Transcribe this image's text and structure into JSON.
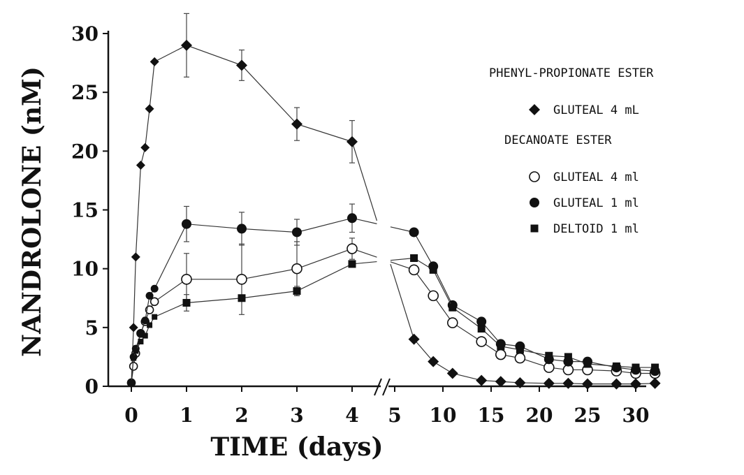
{
  "chart_data": {
    "type": "line",
    "xlabel": "TIME (days)",
    "ylabel": "NANDROLONE (nM)",
    "ylim": [
      0,
      30
    ],
    "y_ticks": [
      "0",
      "5",
      "10",
      "15",
      "20",
      "25",
      "30"
    ],
    "x_axis_break": "between 4 days and 5 days",
    "x_tick_labels": [
      "0",
      "1",
      "2",
      "3",
      "4",
      "5",
      "10",
      "15",
      "20",
      "25",
      "30"
    ],
    "grid": false,
    "legend": {
      "placement": "right",
      "groups": [
        {
          "title": "PHENYL-PROPIONATE ESTER",
          "entries": [
            "GLUTEAL 4 mL"
          ]
        },
        {
          "title": "DECANOATE ESTER",
          "entries": [
            "GLUTEAL 4 ml",
            "GLUTEAL 1 ml",
            "DELTOID 1 ml"
          ]
        }
      ]
    },
    "series": [
      {
        "name": "GLUTEAL 4 mL",
        "group": "PHENYL-PROPIONATE ESTER",
        "marker": "diamond-filled",
        "points": [
          {
            "x": 0,
            "y": 0.3
          },
          {
            "x": 0.04,
            "y": 5
          },
          {
            "x": 0.08,
            "y": 11
          },
          {
            "x": 0.17,
            "y": 18.8
          },
          {
            "x": 0.25,
            "y": 20.3
          },
          {
            "x": 0.33,
            "y": 23.6
          },
          {
            "x": 0.42,
            "y": 27.6
          },
          {
            "x": 1,
            "y": 29,
            "err": 2.7
          },
          {
            "x": 2,
            "y": 27.3,
            "err": 1.3
          },
          {
            "x": 3,
            "y": 22.3,
            "err": 1.4
          },
          {
            "x": 4,
            "y": 20.8,
            "err": 1.8
          },
          {
            "x": 7,
            "y": 4
          },
          {
            "x": 9,
            "y": 2.1
          },
          {
            "x": 11,
            "y": 1.1
          },
          {
            "x": 14,
            "y": 0.5
          },
          {
            "x": 16,
            "y": 0.4
          },
          {
            "x": 18,
            "y": 0.3
          },
          {
            "x": 21,
            "y": 0.25
          },
          {
            "x": 23,
            "y": 0.25
          },
          {
            "x": 25,
            "y": 0.2
          },
          {
            "x": 28,
            "y": 0.2
          },
          {
            "x": 30,
            "y": 0.2
          },
          {
            "x": 32,
            "y": 0.25
          }
        ]
      },
      {
        "name": "GLUTEAL 4 ml",
        "group": "DECANOATE ESTER",
        "marker": "circle-open",
        "points": [
          {
            "x": 0,
            "y": 0.3
          },
          {
            "x": 0.04,
            "y": 1.7
          },
          {
            "x": 0.08,
            "y": 2.8
          },
          {
            "x": 0.17,
            "y": 4.5
          },
          {
            "x": 0.25,
            "y": 5.5
          },
          {
            "x": 0.33,
            "y": 6.5
          },
          {
            "x": 0.42,
            "y": 7.2
          },
          {
            "x": 1,
            "y": 9.1,
            "err": 2.2
          },
          {
            "x": 2,
            "y": 9.1,
            "err": 3
          },
          {
            "x": 3,
            "y": 10,
            "err": 2.3
          },
          {
            "x": 4,
            "y": 11.7,
            "err": 0.9
          },
          {
            "x": 7,
            "y": 9.9
          },
          {
            "x": 9,
            "y": 7.7
          },
          {
            "x": 11,
            "y": 5.4
          },
          {
            "x": 14,
            "y": 3.8
          },
          {
            "x": 16,
            "y": 2.7
          },
          {
            "x": 18,
            "y": 2.4
          },
          {
            "x": 21,
            "y": 1.6
          },
          {
            "x": 23,
            "y": 1.4
          },
          {
            "x": 25,
            "y": 1.4
          },
          {
            "x": 28,
            "y": 1.3
          },
          {
            "x": 30,
            "y": 1.1
          },
          {
            "x": 32,
            "y": 1.1
          }
        ]
      },
      {
        "name": "GLUTEAL 1 ml",
        "group": "DECANOATE ESTER",
        "marker": "circle-filled",
        "points": [
          {
            "x": 0,
            "y": 0.3
          },
          {
            "x": 0.04,
            "y": 2.5
          },
          {
            "x": 0.08,
            "y": 3.2
          },
          {
            "x": 0.17,
            "y": 4.5
          },
          {
            "x": 0.25,
            "y": 5.6
          },
          {
            "x": 0.33,
            "y": 7.7
          },
          {
            "x": 0.42,
            "y": 8.3
          },
          {
            "x": 1,
            "y": 13.8,
            "err": 1.5
          },
          {
            "x": 2,
            "y": 13.4,
            "err": 1.4
          },
          {
            "x": 3,
            "y": 13.1,
            "err": 1.1
          },
          {
            "x": 4,
            "y": 14.3,
            "err": 1.2
          },
          {
            "x": 7,
            "y": 13.1
          },
          {
            "x": 9,
            "y": 10.2
          },
          {
            "x": 11,
            "y": 6.9
          },
          {
            "x": 14,
            "y": 5.5
          },
          {
            "x": 16,
            "y": 3.6
          },
          {
            "x": 18,
            "y": 3.4
          },
          {
            "x": 21,
            "y": 2.3
          },
          {
            "x": 23,
            "y": 2.1
          },
          {
            "x": 25,
            "y": 2.1
          },
          {
            "x": 28,
            "y": 1.6
          },
          {
            "x": 30,
            "y": 1.4
          },
          {
            "x": 32,
            "y": 1.3
          }
        ]
      },
      {
        "name": "DELTOID 1 ml",
        "group": "DECANOATE ESTER",
        "marker": "square-filled",
        "points": [
          {
            "x": 0,
            "y": 0.3
          },
          {
            "x": 0.04,
            "y": 2.4
          },
          {
            "x": 0.08,
            "y": 3
          },
          {
            "x": 0.17,
            "y": 3.8
          },
          {
            "x": 0.25,
            "y": 4.3
          },
          {
            "x": 0.33,
            "y": 5.2
          },
          {
            "x": 0.42,
            "y": 5.9
          },
          {
            "x": 1,
            "y": 7.1,
            "err": 0.7
          },
          {
            "x": 2,
            "y": 7.5
          },
          {
            "x": 3,
            "y": 8.1,
            "err": 0.4
          },
          {
            "x": 4,
            "y": 10.4
          },
          {
            "x": 7,
            "y": 10.9
          },
          {
            "x": 9,
            "y": 9.9
          },
          {
            "x": 11,
            "y": 6.7
          },
          {
            "x": 14,
            "y": 4.9
          },
          {
            "x": 16,
            "y": 3.4
          },
          {
            "x": 18,
            "y": 3.1
          },
          {
            "x": 21,
            "y": 2.6
          },
          {
            "x": 23,
            "y": 2.5
          },
          {
            "x": 25,
            "y": 1.9
          },
          {
            "x": 28,
            "y": 1.7
          },
          {
            "x": 30,
            "y": 1.6
          },
          {
            "x": 32,
            "y": 1.6
          }
        ]
      }
    ]
  }
}
